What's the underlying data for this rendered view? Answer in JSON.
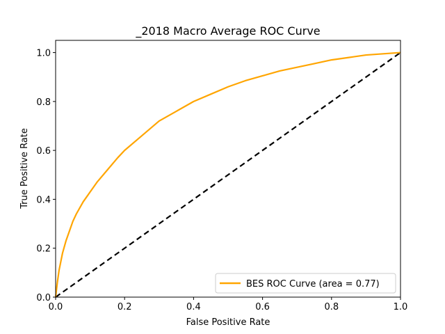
{
  "chart_data": {
    "type": "line",
    "title": "_2018 Macro Average ROC Curve",
    "xlabel": "False Positive Rate",
    "ylabel": "True Positive Rate",
    "xlim": [
      0.0,
      1.0
    ],
    "ylim": [
      0.0,
      1.05
    ],
    "xticks": [
      0.0,
      0.2,
      0.4,
      0.6,
      0.8,
      1.0
    ],
    "yticks": [
      0.0,
      0.2,
      0.4,
      0.6,
      0.8,
      1.0
    ],
    "xtick_labels": [
      "0.0",
      "0.2",
      "0.4",
      "0.6",
      "0.8",
      "1.0"
    ],
    "ytick_labels": [
      "0.0",
      "0.2",
      "0.4",
      "0.6",
      "0.8",
      "1.0"
    ],
    "grid": false,
    "legend_position": "lower-right",
    "series": [
      {
        "name": "BES ROC Curve (area = 0.77)",
        "color": "#ffa500",
        "style": "solid",
        "x": [
          0.0,
          0.005,
          0.01,
          0.02,
          0.03,
          0.04,
          0.05,
          0.06,
          0.08,
          0.1,
          0.12,
          0.15,
          0.18,
          0.2,
          0.25,
          0.3,
          0.35,
          0.4,
          0.45,
          0.5,
          0.55,
          0.6,
          0.65,
          0.7,
          0.75,
          0.8,
          0.85,
          0.9,
          0.95,
          1.0
        ],
        "y": [
          0.0,
          0.06,
          0.11,
          0.18,
          0.23,
          0.27,
          0.31,
          0.34,
          0.39,
          0.43,
          0.47,
          0.52,
          0.57,
          0.6,
          0.66,
          0.72,
          0.76,
          0.8,
          0.83,
          0.86,
          0.885,
          0.905,
          0.925,
          0.94,
          0.955,
          0.97,
          0.98,
          0.99,
          0.995,
          1.0
        ]
      },
      {
        "name": "",
        "color": "#000000",
        "style": "dashed",
        "x": [
          0.0,
          1.0
        ],
        "y": [
          0.0,
          1.0
        ]
      }
    ]
  }
}
